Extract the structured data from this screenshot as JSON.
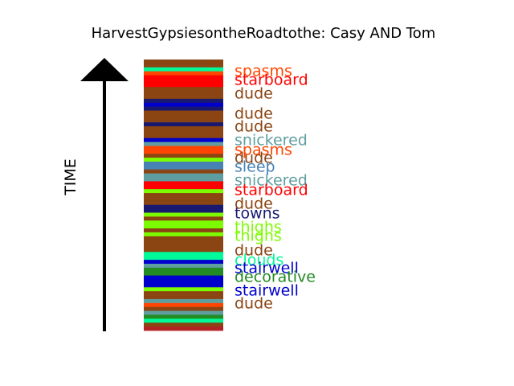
{
  "chart_data": {
    "type": "bar",
    "title": "HarvestGypsiesontheRoadtothe: Casy AND Tom",
    "ylabel": "TIME",
    "colors": {
      "dude": "#8b4513",
      "spasms": "#ff4500",
      "starboard": "#ff0000",
      "snickered": "#5f9ea0",
      "sleep": "#4682b4",
      "towns": "#191970",
      "thighs": "#7cfc00",
      "clouds": "#00fa9a",
      "stairwell": "#0000cd",
      "decorative": "#228b22",
      "brick": "#b22222"
    },
    "stripes": [
      "dude",
      "dude",
      "clouds",
      "spasms",
      "starboard",
      "starboard",
      "starboard",
      "dude",
      "dude",
      "dude",
      "towns",
      "stairwell",
      "towns",
      "dude",
      "dude",
      "dude",
      "towns",
      "dude",
      "dude",
      "dude",
      "stairwell",
      "snickered",
      "spasms",
      "spasms",
      "dude",
      "thighs",
      "sleep",
      "sleep",
      "dude",
      "snickered",
      "snickered",
      "starboard",
      "starboard",
      "thighs",
      "dude",
      "dude",
      "dude",
      "towns",
      "towns",
      "thighs",
      "dude",
      "thighs",
      "thighs",
      "dude",
      "thighs",
      "dude",
      "dude",
      "dude",
      "dude",
      "clouds",
      "clouds",
      "stairwell",
      "snickered",
      "decorative",
      "decorative",
      "stairwell",
      "stairwell",
      "stairwell",
      "thighs",
      "dude",
      "dude",
      "snickered",
      "spasms",
      "dude",
      "snickered",
      "decorative",
      "clouds",
      "dude",
      "brick"
    ],
    "labels": [
      {
        "text": "spasms",
        "series": "spasms"
      },
      {
        "text": "starboard",
        "series": "starboard"
      },
      {
        "text": "dude",
        "series": "dude"
      },
      {
        "text": "dude",
        "series": "dude"
      },
      {
        "text": "dude",
        "series": "dude"
      },
      {
        "text": "snickered",
        "series": "snickered"
      },
      {
        "text": "spasms",
        "series": "spasms"
      },
      {
        "text": "dude",
        "series": "dude"
      },
      {
        "text": "sleep",
        "series": "sleep"
      },
      {
        "text": "snickered",
        "series": "snickered"
      },
      {
        "text": "starboard",
        "series": "starboard"
      },
      {
        "text": "dude",
        "series": "dude"
      },
      {
        "text": "towns",
        "series": "towns"
      },
      {
        "text": "thighs",
        "series": "thighs"
      },
      {
        "text": "thighs",
        "series": "thighs"
      },
      {
        "text": "dude",
        "series": "dude"
      },
      {
        "text": "clouds",
        "series": "clouds"
      },
      {
        "text": "stairwell",
        "series": "stairwell"
      },
      {
        "text": "decorative",
        "series": "decorative"
      },
      {
        "text": "stairwell",
        "series": "stairwell"
      },
      {
        "text": "dude",
        "series": "dude"
      }
    ]
  }
}
